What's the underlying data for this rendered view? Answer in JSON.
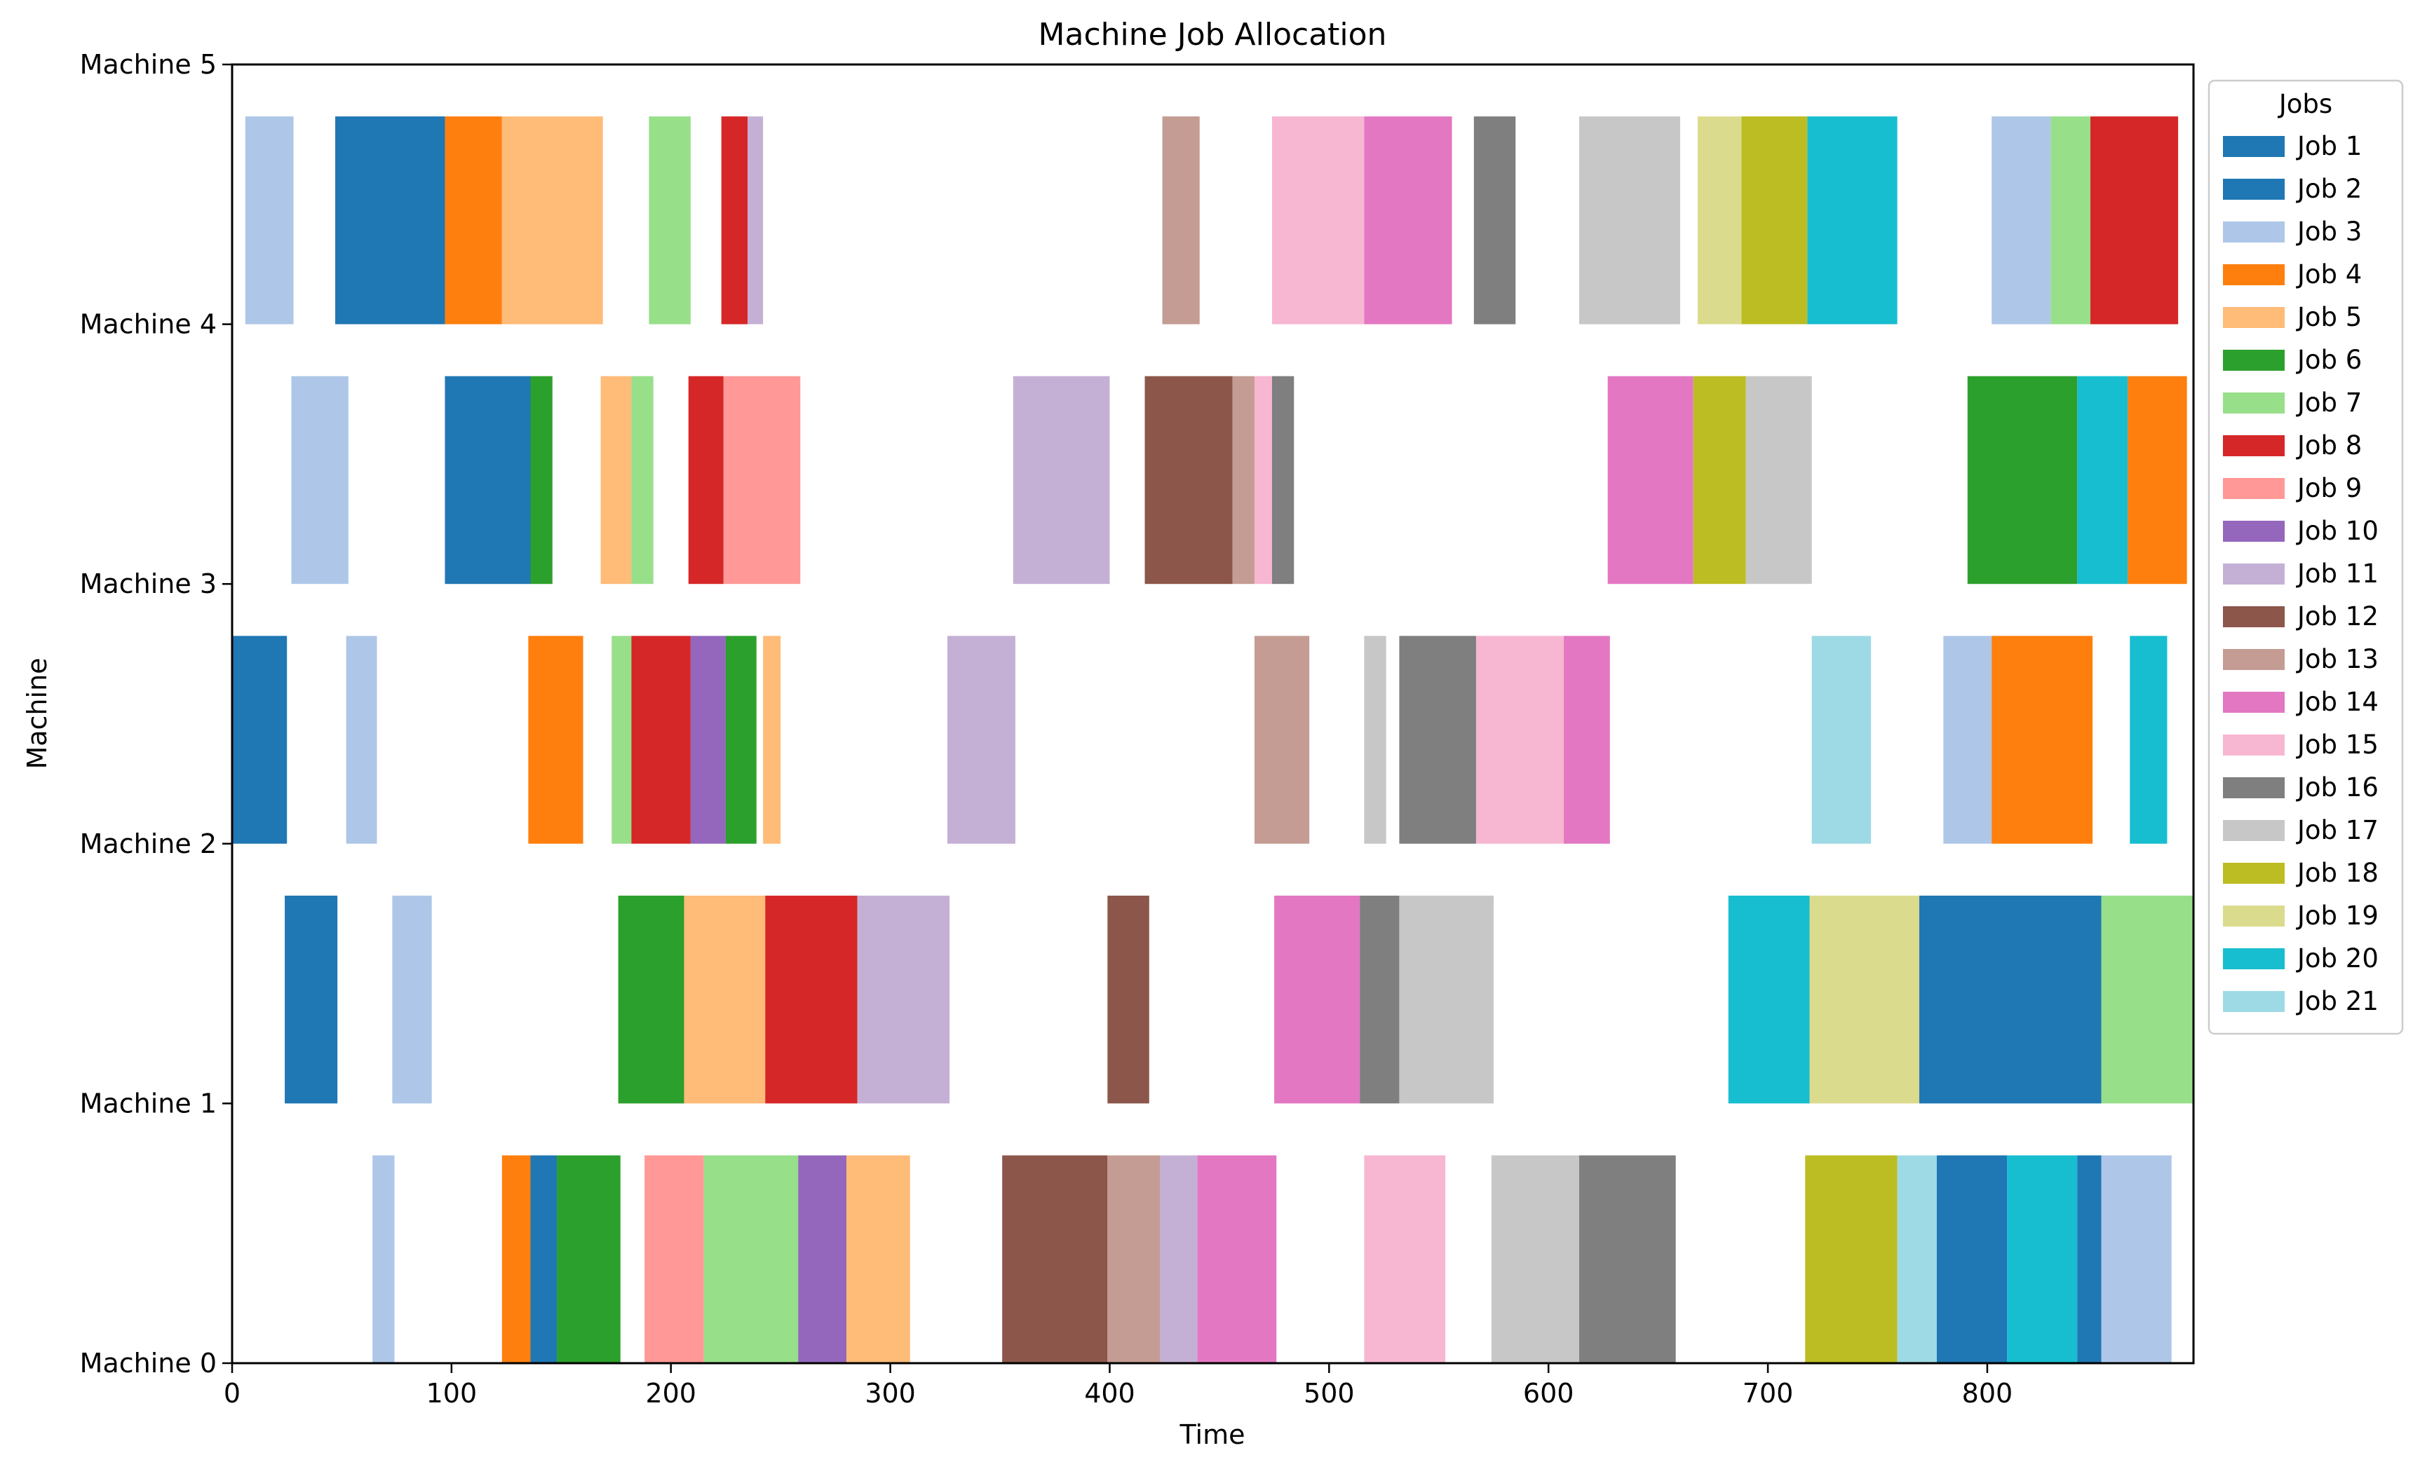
{
  "chart_data": {
    "type": "gantt",
    "title": "Machine Job Allocation",
    "xlabel": "Time",
    "ylabel": "Machine",
    "xlim": [
      0,
      894
    ],
    "ylim": [
      0,
      5
    ],
    "xticks": [
      "0",
      "100",
      "200",
      "300",
      "400",
      "500",
      "600",
      "700",
      "800"
    ],
    "yticks": [
      "Machine 0",
      "Machine 1",
      "Machine 2",
      "Machine 3",
      "Machine 4",
      "Machine 5"
    ],
    "legend": {
      "title": "Jobs",
      "placement": "outside-right",
      "entries": [
        {
          "name": "Job 1",
          "color": "#1f77b4"
        },
        {
          "name": "Job 2",
          "color": "#1f77b4"
        },
        {
          "name": "Job 3",
          "color": "#aec7e8"
        },
        {
          "name": "Job 4",
          "color": "#ff7f0e"
        },
        {
          "name": "Job 5",
          "color": "#ffbb78"
        },
        {
          "name": "Job 6",
          "color": "#2ca02c"
        },
        {
          "name": "Job 7",
          "color": "#98df8a"
        },
        {
          "name": "Job 8",
          "color": "#d62728"
        },
        {
          "name": "Job 9",
          "color": "#ff9896"
        },
        {
          "name": "Job 10",
          "color": "#9467bd"
        },
        {
          "name": "Job 11",
          "color": "#c5b0d5"
        },
        {
          "name": "Job 12",
          "color": "#8c564b"
        },
        {
          "name": "Job 13",
          "color": "#c49c94"
        },
        {
          "name": "Job 14",
          "color": "#e377c2"
        },
        {
          "name": "Job 15",
          "color": "#f7b6d2"
        },
        {
          "name": "Job 16",
          "color": "#7f7f7f"
        },
        {
          "name": "Job 17",
          "color": "#c7c7c7"
        },
        {
          "name": "Job 18",
          "color": "#bcbd22"
        },
        {
          "name": "Job 19",
          "color": "#dbdb8d"
        },
        {
          "name": "Job 20",
          "color": "#17becf"
        },
        {
          "name": "Job 21",
          "color": "#9edae5"
        }
      ]
    },
    "machines": [
      {
        "name": "Machine 0",
        "tasks": [
          {
            "job": "Job 3",
            "start": 64,
            "end": 74
          },
          {
            "job": "Job 4",
            "start": 123,
            "end": 136
          },
          {
            "job": "Job 2",
            "start": 136,
            "end": 148
          },
          {
            "job": "Job 6",
            "start": 148,
            "end": 177
          },
          {
            "job": "Job 9",
            "start": 188,
            "end": 215
          },
          {
            "job": "Job 7",
            "start": 215,
            "end": 258
          },
          {
            "job": "Job 10",
            "start": 258,
            "end": 280
          },
          {
            "job": "Job 5",
            "start": 280,
            "end": 309
          },
          {
            "job": "Job 12",
            "start": 351,
            "end": 399
          },
          {
            "job": "Job 13",
            "start": 399,
            "end": 423
          },
          {
            "job": "Job 11",
            "start": 423,
            "end": 440
          },
          {
            "job": "Job 14",
            "start": 440,
            "end": 476
          },
          {
            "job": "Job 15",
            "start": 516,
            "end": 553
          },
          {
            "job": "Job 17",
            "start": 574,
            "end": 614
          },
          {
            "job": "Job 16",
            "start": 614,
            "end": 658
          },
          {
            "job": "Job 18",
            "start": 717,
            "end": 759
          },
          {
            "job": "Job 21",
            "start": 759,
            "end": 777
          },
          {
            "job": "Job 2",
            "start": 777,
            "end": 809
          },
          {
            "job": "Job 20",
            "start": 809,
            "end": 841
          },
          {
            "job": "Job 2",
            "start": 841,
            "end": 852
          },
          {
            "job": "Job 3",
            "start": 852,
            "end": 884
          }
        ]
      },
      {
        "name": "Machine 1",
        "tasks": [
          {
            "job": "Job 2",
            "start": 24,
            "end": 48
          },
          {
            "job": "Job 3",
            "start": 73,
            "end": 91
          },
          {
            "job": "Job 6",
            "start": 176,
            "end": 206
          },
          {
            "job": "Job 5",
            "start": 206,
            "end": 243
          },
          {
            "job": "Job 8",
            "start": 243,
            "end": 285
          },
          {
            "job": "Job 11",
            "start": 285,
            "end": 327
          },
          {
            "job": "Job 12",
            "start": 399,
            "end": 418
          },
          {
            "job": "Job 14",
            "start": 475,
            "end": 514
          },
          {
            "job": "Job 16",
            "start": 514,
            "end": 532
          },
          {
            "job": "Job 17",
            "start": 532,
            "end": 575
          },
          {
            "job": "Job 20",
            "start": 682,
            "end": 719
          },
          {
            "job": "Job 19",
            "start": 719,
            "end": 769
          },
          {
            "job": "Job 2",
            "start": 769,
            "end": 852
          },
          {
            "job": "Job 7",
            "start": 852,
            "end": 894
          }
        ]
      },
      {
        "name": "Machine 2",
        "tasks": [
          {
            "job": "Job 2",
            "start": 0,
            "end": 25
          },
          {
            "job": "Job 3",
            "start": 52,
            "end": 66
          },
          {
            "job": "Job 4",
            "start": 135,
            "end": 160
          },
          {
            "job": "Job 7",
            "start": 173,
            "end": 182
          },
          {
            "job": "Job 8",
            "start": 182,
            "end": 209
          },
          {
            "job": "Job 10",
            "start": 209,
            "end": 225
          },
          {
            "job": "Job 6",
            "start": 225,
            "end": 239
          },
          {
            "job": "Job 5",
            "start": 242,
            "end": 250
          },
          {
            "job": "Job 11",
            "start": 326,
            "end": 357
          },
          {
            "job": "Job 13",
            "start": 466,
            "end": 491
          },
          {
            "job": "Job 17",
            "start": 516,
            "end": 526
          },
          {
            "job": "Job 16",
            "start": 532,
            "end": 567
          },
          {
            "job": "Job 15",
            "start": 567,
            "end": 607
          },
          {
            "job": "Job 14",
            "start": 607,
            "end": 628
          },
          {
            "job": "Job 21",
            "start": 720,
            "end": 747
          },
          {
            "job": "Job 3",
            "start": 780,
            "end": 802
          },
          {
            "job": "Job 4",
            "start": 802,
            "end": 848
          },
          {
            "job": "Job 20",
            "start": 865,
            "end": 882
          }
        ]
      },
      {
        "name": "Machine 3",
        "tasks": [
          {
            "job": "Job 3",
            "start": 27,
            "end": 53
          },
          {
            "job": "Job 2",
            "start": 97,
            "end": 136
          },
          {
            "job": "Job 6",
            "start": 136,
            "end": 146
          },
          {
            "job": "Job 5",
            "start": 168,
            "end": 182
          },
          {
            "job": "Job 7",
            "start": 182,
            "end": 192
          },
          {
            "job": "Job 8",
            "start": 208,
            "end": 224
          },
          {
            "job": "Job 9",
            "start": 224,
            "end": 259
          },
          {
            "job": "Job 11",
            "start": 356,
            "end": 400
          },
          {
            "job": "Job 12",
            "start": 416,
            "end": 456
          },
          {
            "job": "Job 13",
            "start": 456,
            "end": 466
          },
          {
            "job": "Job 15",
            "start": 466,
            "end": 474
          },
          {
            "job": "Job 16",
            "start": 474,
            "end": 484
          },
          {
            "job": "Job 14",
            "start": 627,
            "end": 666
          },
          {
            "job": "Job 18",
            "start": 666,
            "end": 690
          },
          {
            "job": "Job 17",
            "start": 690,
            "end": 720
          },
          {
            "job": "Job 6",
            "start": 791,
            "end": 841
          },
          {
            "job": "Job 20",
            "start": 841,
            "end": 864
          },
          {
            "job": "Job 4",
            "start": 864,
            "end": 891
          }
        ]
      },
      {
        "name": "Machine 4",
        "tasks": [
          {
            "job": "Job 3",
            "start": 6,
            "end": 28
          },
          {
            "job": "Job 2",
            "start": 47,
            "end": 97
          },
          {
            "job": "Job 4",
            "start": 97,
            "end": 123
          },
          {
            "job": "Job 5",
            "start": 123,
            "end": 169
          },
          {
            "job": "Job 7",
            "start": 190,
            "end": 209
          },
          {
            "job": "Job 8",
            "start": 223,
            "end": 235
          },
          {
            "job": "Job 11",
            "start": 235,
            "end": 242
          },
          {
            "job": "Job 13",
            "start": 424,
            "end": 441
          },
          {
            "job": "Job 15",
            "start": 474,
            "end": 516
          },
          {
            "job": "Job 14",
            "start": 516,
            "end": 556
          },
          {
            "job": "Job 16",
            "start": 566,
            "end": 585
          },
          {
            "job": "Job 17",
            "start": 614,
            "end": 660
          },
          {
            "job": "Job 19",
            "start": 668,
            "end": 688
          },
          {
            "job": "Job 18",
            "start": 688,
            "end": 718
          },
          {
            "job": "Job 20",
            "start": 718,
            "end": 759
          },
          {
            "job": "Job 3",
            "start": 802,
            "end": 829
          },
          {
            "job": "Job 7",
            "start": 829,
            "end": 847
          },
          {
            "job": "Job 8",
            "start": 847,
            "end": 887
          }
        ]
      }
    ]
  }
}
